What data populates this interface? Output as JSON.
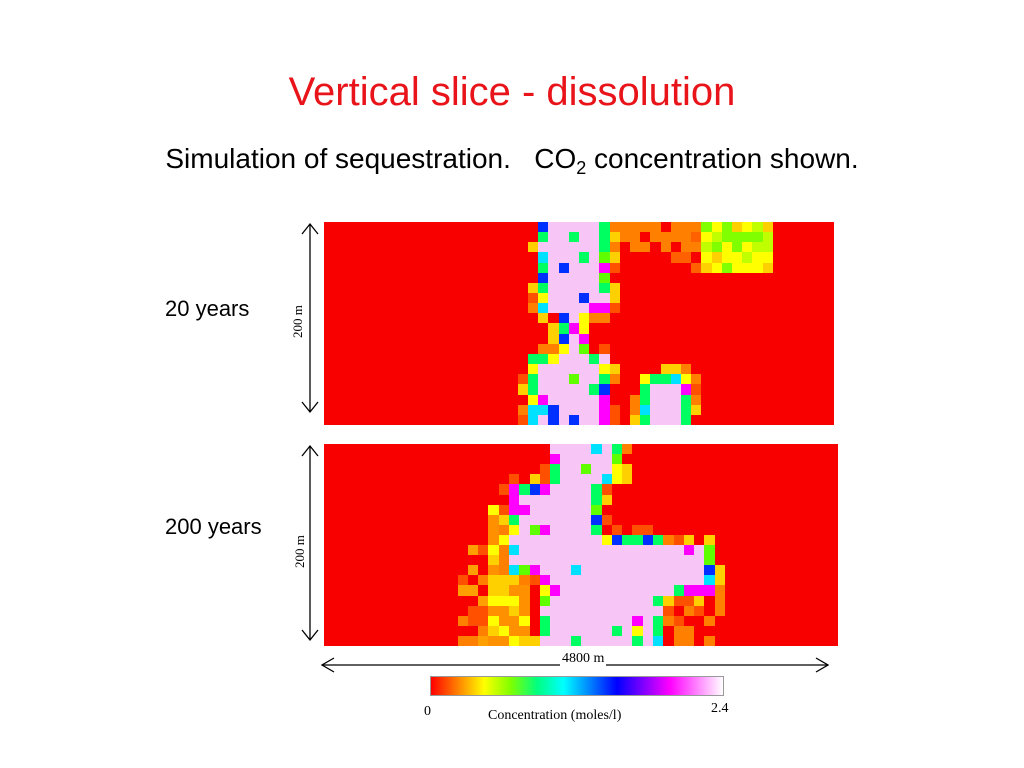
{
  "slide": {
    "title": "Vertical slice - dissolution",
    "subtitle_pre": "Simulation of sequestration.   CO",
    "subtitle_sub": "2",
    "subtitle_post": " concentration shown."
  },
  "panels": [
    {
      "label": "20 years",
      "height_label": "200 m"
    },
    {
      "label": "200 years",
      "height_label": "200 m"
    }
  ],
  "width_label": "4800 m",
  "colorbar": {
    "min_label": "0",
    "max_label": "2.4",
    "caption": "Concentration (moles/l)",
    "stops": [
      "#ff0000",
      "#ff8000",
      "#ffff00",
      "#80ff00",
      "#00ff80",
      "#00ffff",
      "#0080ff",
      "#0000ff",
      "#8000ff",
      "#ff00ff",
      "#ff80ff",
      "#ffffff"
    ]
  },
  "colors": {
    "title": "#e8141a",
    "background_field": "#f80000",
    "plume": "#f7c6f7"
  }
}
